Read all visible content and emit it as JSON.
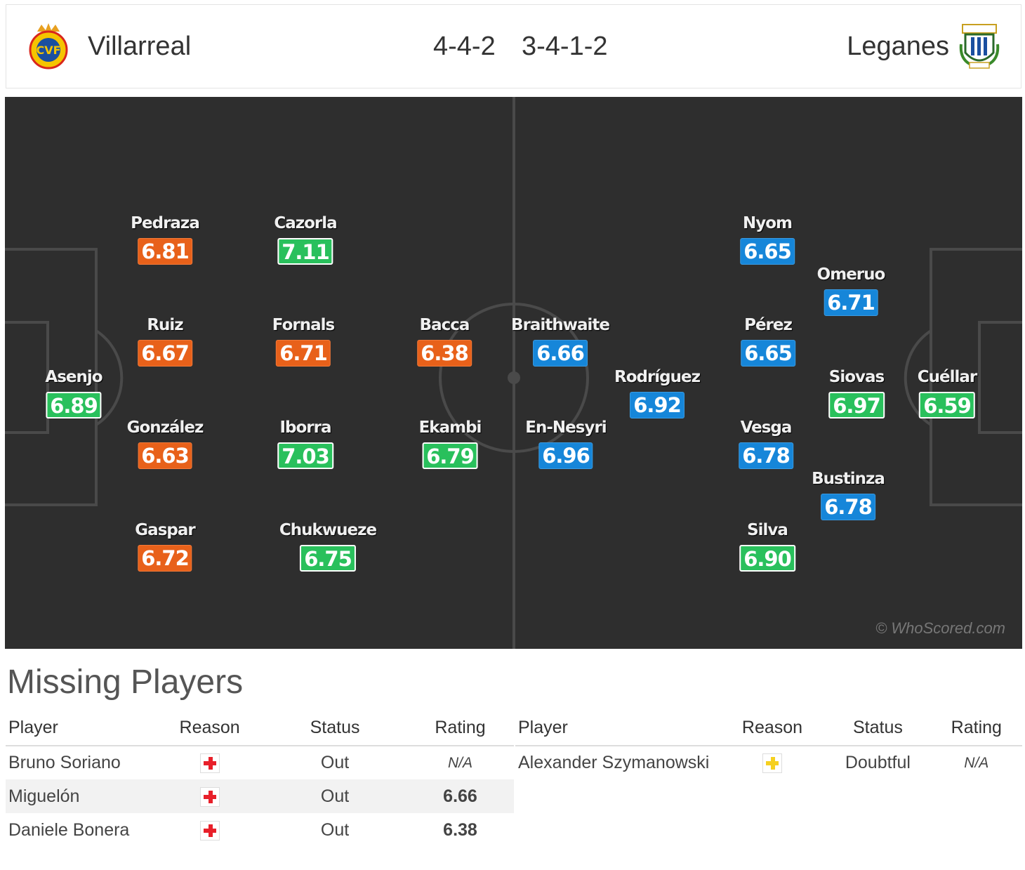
{
  "header": {
    "home_team": "Villarreal",
    "away_team": "Leganes",
    "home_formation": "4-4-2",
    "away_formation": "3-4-1-2"
  },
  "colors": {
    "home_rating": "#e8611a",
    "good_rating": "#29c05c",
    "away_rating": "#1686d9",
    "injury_red": "#e8202a",
    "doubtful_yellow": "#f5d020"
  },
  "pitch": {
    "watermark": "© WhoScored.com",
    "home_players": [
      {
        "name": "Asenjo",
        "rating": "6.89",
        "color": "green"
      },
      {
        "name": "Pedraza",
        "rating": "6.81",
        "color": "orange"
      },
      {
        "name": "Ruiz",
        "rating": "6.67",
        "color": "orange"
      },
      {
        "name": "González",
        "rating": "6.63",
        "color": "orange"
      },
      {
        "name": "Gaspar",
        "rating": "6.72",
        "color": "orange"
      },
      {
        "name": "Cazorla",
        "rating": "7.11",
        "color": "green"
      },
      {
        "name": "Fornals",
        "rating": "6.71",
        "color": "orange"
      },
      {
        "name": "Iborra",
        "rating": "7.03",
        "color": "green"
      },
      {
        "name": "Chukwueze",
        "rating": "6.75",
        "color": "green"
      },
      {
        "name": "Bacca",
        "rating": "6.38",
        "color": "orange"
      },
      {
        "name": "Ekambi",
        "rating": "6.79",
        "color": "green"
      }
    ],
    "away_players": [
      {
        "name": "Braithwaite",
        "rating": "6.66",
        "color": "blue"
      },
      {
        "name": "En-Nesyri",
        "rating": "6.96",
        "color": "blue"
      },
      {
        "name": "Rodríguez",
        "rating": "6.92",
        "color": "blue"
      },
      {
        "name": "Nyom",
        "rating": "6.65",
        "color": "blue"
      },
      {
        "name": "Pérez",
        "rating": "6.65",
        "color": "blue"
      },
      {
        "name": "Vesga",
        "rating": "6.78",
        "color": "blue"
      },
      {
        "name": "Silva",
        "rating": "6.90",
        "color": "green"
      },
      {
        "name": "Omeruo",
        "rating": "6.71",
        "color": "blue"
      },
      {
        "name": "Siovas",
        "rating": "6.97",
        "color": "green"
      },
      {
        "name": "Bustinza",
        "rating": "6.78",
        "color": "blue"
      },
      {
        "name": "Cuéllar",
        "rating": "6.59",
        "color": "green"
      }
    ]
  },
  "missing": {
    "title": "Missing Players",
    "columns": [
      "Player",
      "Reason",
      "Status",
      "Rating"
    ],
    "home": [
      {
        "player": "Bruno Soriano",
        "reason_icon": "injury-cross-icon",
        "status": "Out",
        "rating": "N/A"
      },
      {
        "player": "Miguelón",
        "reason_icon": "injury-cross-icon",
        "status": "Out",
        "rating": "6.66"
      },
      {
        "player": "Daniele Bonera",
        "reason_icon": "injury-cross-icon",
        "status": "Out",
        "rating": "6.38"
      }
    ],
    "away": [
      {
        "player": "Alexander Szymanowski",
        "reason_icon": "doubtful-cross-icon",
        "status": "Doubtful",
        "rating": "N/A"
      }
    ]
  }
}
